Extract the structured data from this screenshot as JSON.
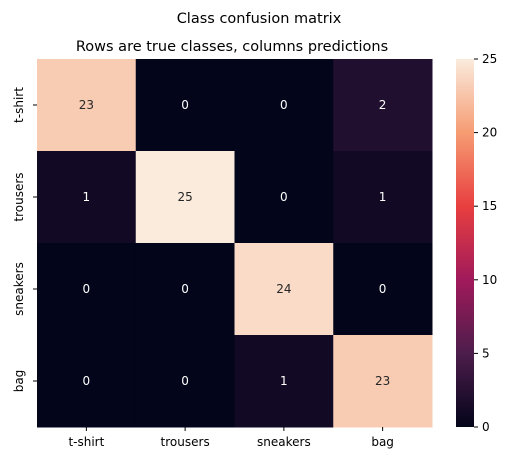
{
  "chart_data": {
    "type": "heatmap",
    "title": "Class confusion matrix",
    "subtitle": "Rows are true classes, columns predictions",
    "row_labels": [
      "t-shirt",
      "trousers",
      "sneakers",
      "bag"
    ],
    "col_labels": [
      "t-shirt",
      "trousers",
      "sneakers",
      "bag"
    ],
    "values": [
      [
        23,
        0,
        0,
        2
      ],
      [
        1,
        25,
        0,
        1
      ],
      [
        0,
        0,
        24,
        0
      ],
      [
        0,
        0,
        1,
        23
      ]
    ],
    "colorbar": {
      "min": 0,
      "max": 25,
      "ticks": [
        0,
        5,
        10,
        15,
        20,
        25
      ]
    },
    "colormap": [
      "#03051a",
      "#4c1d4b",
      "#a11a5b",
      "#e83f3f",
      "#f69c73",
      "#faebdd"
    ],
    "annotation_colors": {
      "light": "#ffffff",
      "dark": "#262626"
    },
    "grid": false
  }
}
